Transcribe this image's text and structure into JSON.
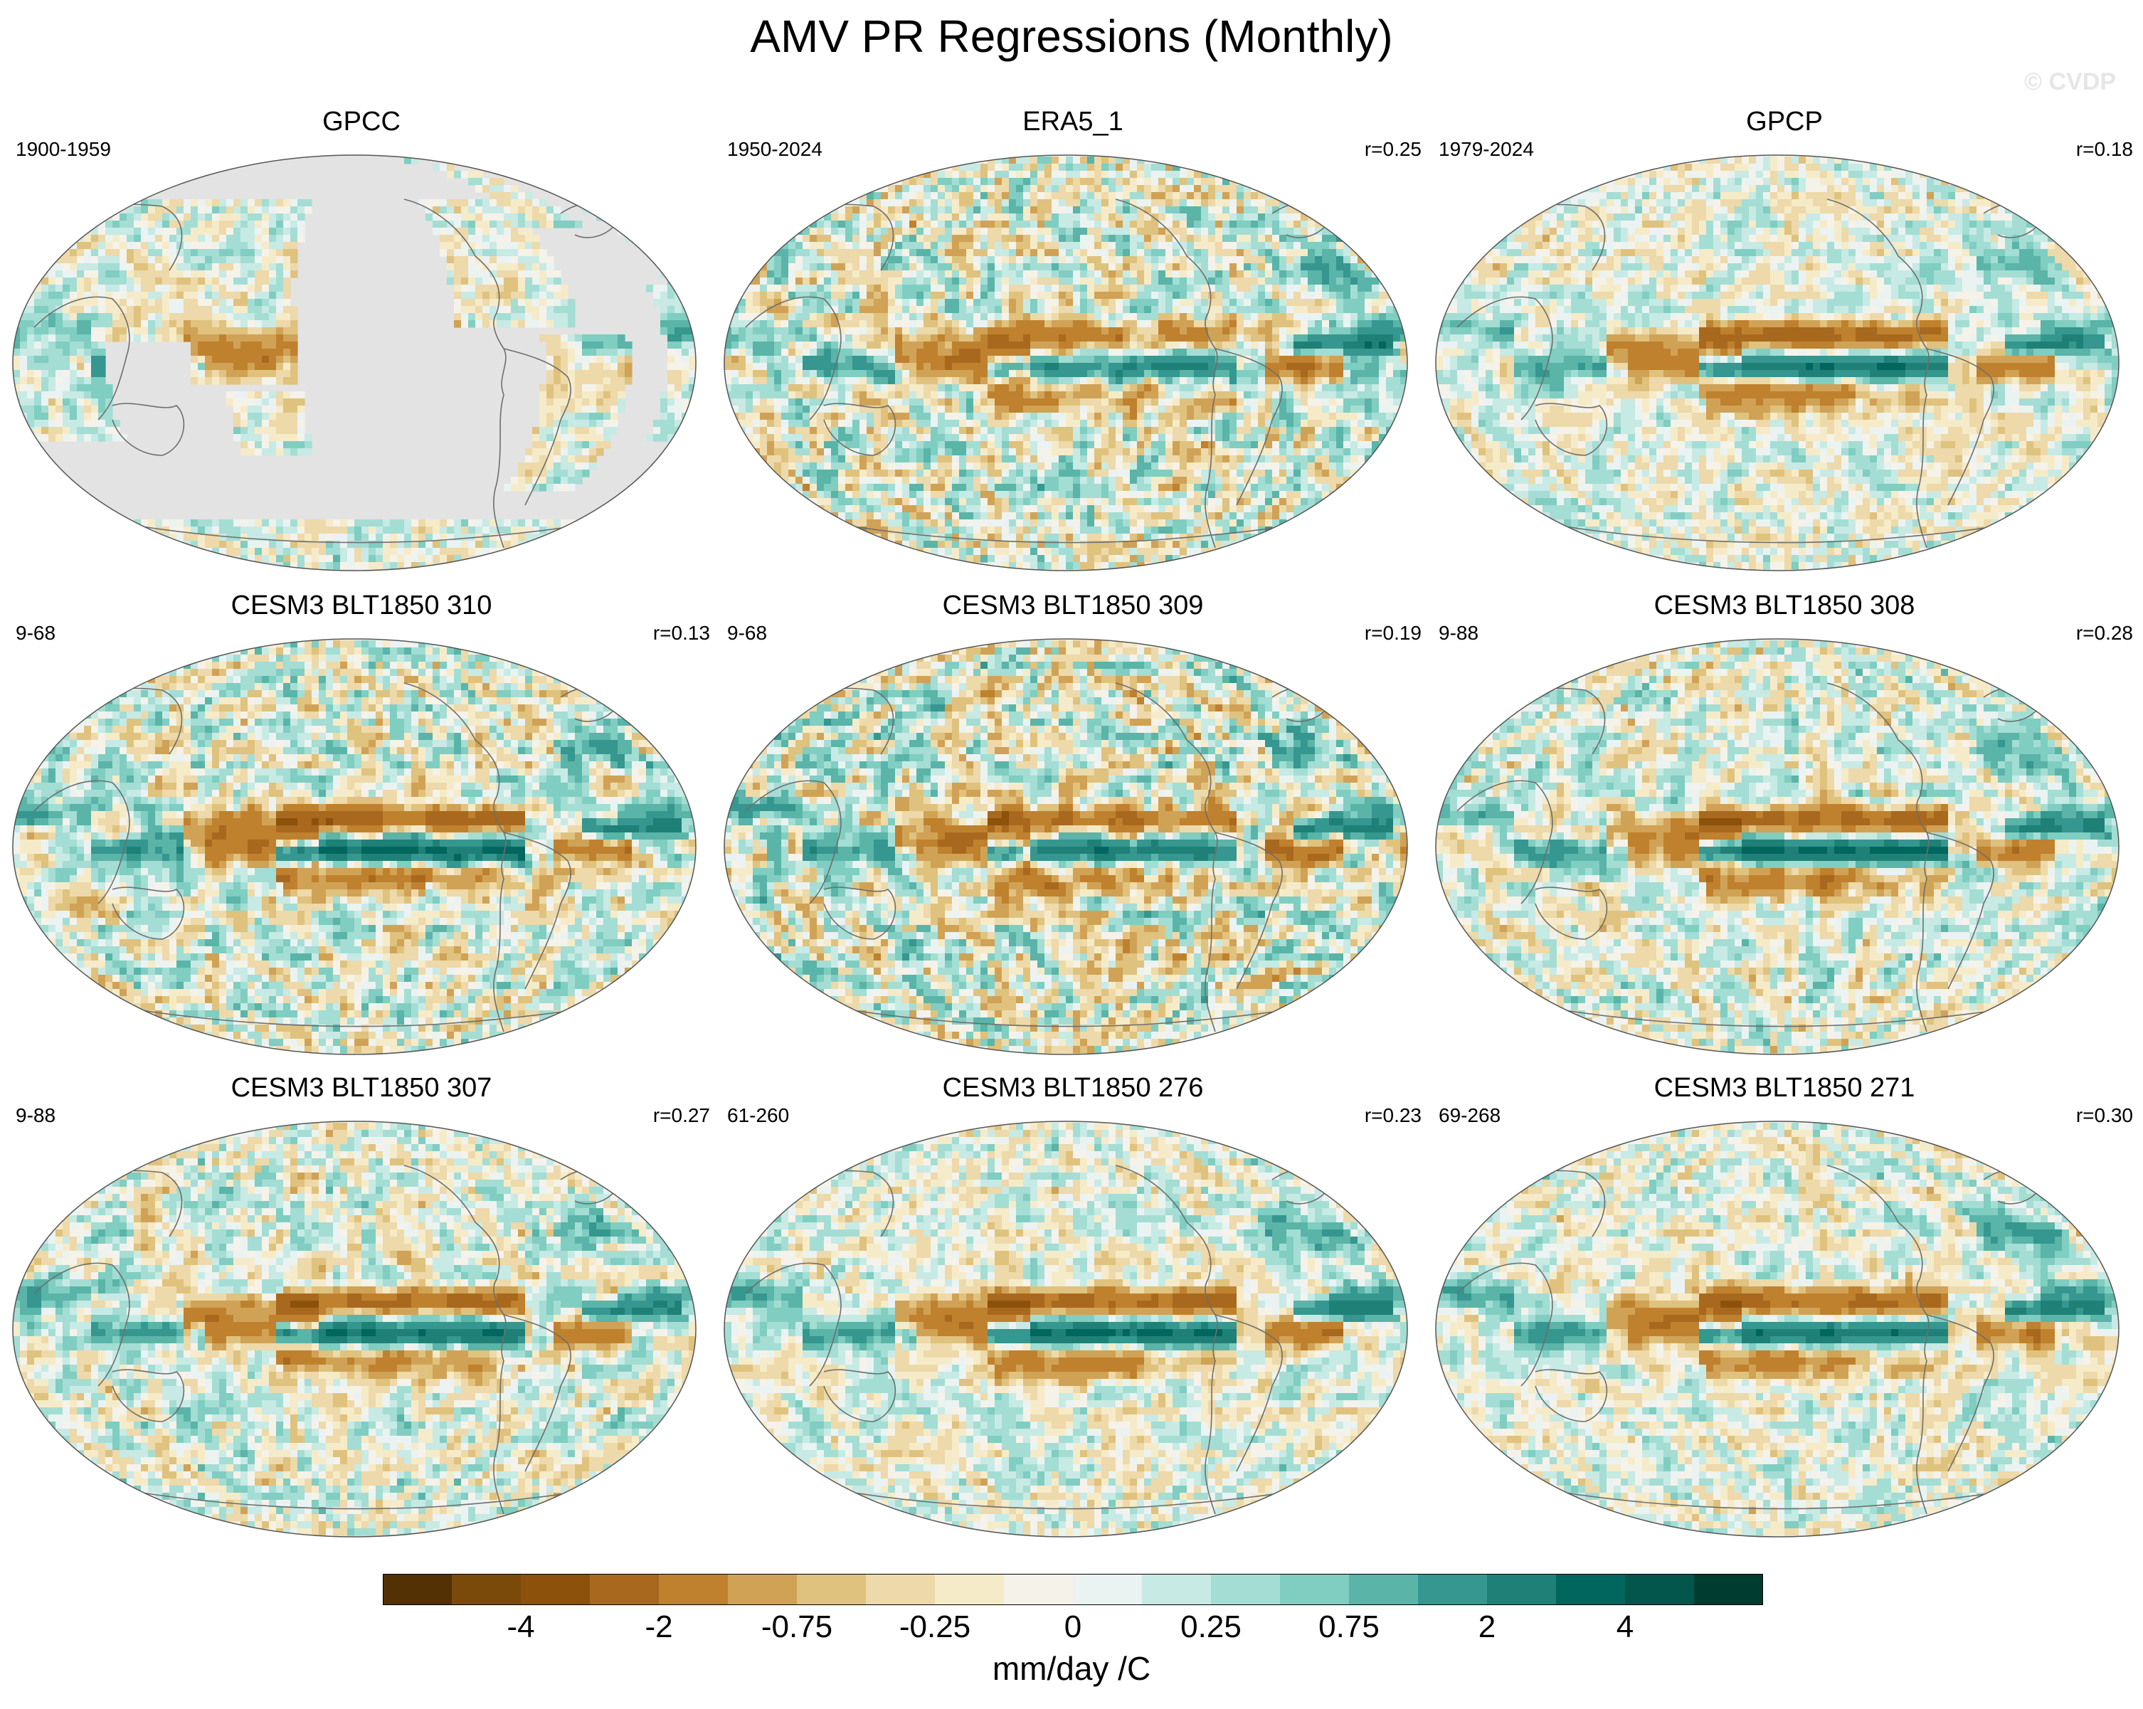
{
  "figure": {
    "title": "AMV PR Regressions (Monthly)",
    "watermark": "© CVDP"
  },
  "panels": [
    {
      "title": "GPCC",
      "period": "1900-1959",
      "corr": "",
      "land_only": true,
      "pattern": {
        "enso": 0.2,
        "itcz": 0.2,
        "sahel": 0.6,
        "asia": 0.7,
        "noise": 0.5
      }
    },
    {
      "title": "ERA5_1",
      "period": "1950-2024",
      "corr": "r=0.25",
      "land_only": false,
      "pattern": {
        "enso": 0.6,
        "itcz": 0.9,
        "sahel": 0.6,
        "asia": 0.7,
        "noise": 0.8
      }
    },
    {
      "title": "GPCP",
      "period": "1979-2024",
      "corr": "r=0.18",
      "land_only": false,
      "pattern": {
        "enso": 0.9,
        "itcz": 0.8,
        "sahel": 0.7,
        "asia": 0.7,
        "noise": 0.5
      }
    },
    {
      "title": "CESM3 BLT1850 310",
      "period": "9-68",
      "corr": "r=0.13",
      "land_only": false,
      "pattern": {
        "enso": 1.0,
        "itcz": 0.9,
        "sahel": 0.7,
        "asia": 0.9,
        "noise": 0.7
      }
    },
    {
      "title": "CESM3 BLT1850 309",
      "period": "9-68",
      "corr": "r=0.19",
      "land_only": false,
      "pattern": {
        "enso": 0.8,
        "itcz": 0.9,
        "sahel": 0.7,
        "asia": 0.9,
        "noise": 0.9
      }
    },
    {
      "title": "CESM3 BLT1850 308",
      "period": "9-88",
      "corr": "r=0.28",
      "land_only": false,
      "pattern": {
        "enso": 1.0,
        "itcz": 0.8,
        "sahel": 0.8,
        "asia": 0.7,
        "noise": 0.6
      }
    },
    {
      "title": "CESM3 BLT1850 307",
      "period": "9-88",
      "corr": "r=0.27",
      "land_only": false,
      "pattern": {
        "enso": 0.9,
        "itcz": 0.7,
        "sahel": 0.7,
        "asia": 0.8,
        "noise": 0.6
      }
    },
    {
      "title": "CESM3 BLT1850 276",
      "period": "61-260",
      "corr": "r=0.23",
      "land_only": false,
      "pattern": {
        "enso": 1.0,
        "itcz": 0.8,
        "sahel": 0.8,
        "asia": 0.8,
        "noise": 0.5
      }
    },
    {
      "title": "CESM3 BLT1850 271",
      "period": "69-268",
      "corr": "r=0.30",
      "land_only": false,
      "pattern": {
        "enso": 0.9,
        "itcz": 0.8,
        "sahel": 0.8,
        "asia": 0.8,
        "noise": 0.5
      }
    }
  ],
  "colorbar": {
    "colors": [
      "#543005",
      "#7a4a0b",
      "#8c510a",
      "#a8681e",
      "#bf812d",
      "#d0a256",
      "#dfc27d",
      "#edd9a9",
      "#f6ebc8",
      "#f5f2ea",
      "#eaf3f1",
      "#c7eae5",
      "#a4ddd4",
      "#80cdc1",
      "#5ab4a8",
      "#35978f",
      "#1f8077",
      "#01665e",
      "#02564c",
      "#003c30"
    ],
    "tick_labels": [
      "-4",
      "-2",
      "-0.75",
      "-0.25",
      "0",
      "0.25",
      "0.75",
      "2",
      "4"
    ],
    "tick_boundaries": [
      2,
      4,
      6,
      8,
      10,
      12,
      14,
      16,
      18
    ],
    "units": "mm/day /C"
  }
}
